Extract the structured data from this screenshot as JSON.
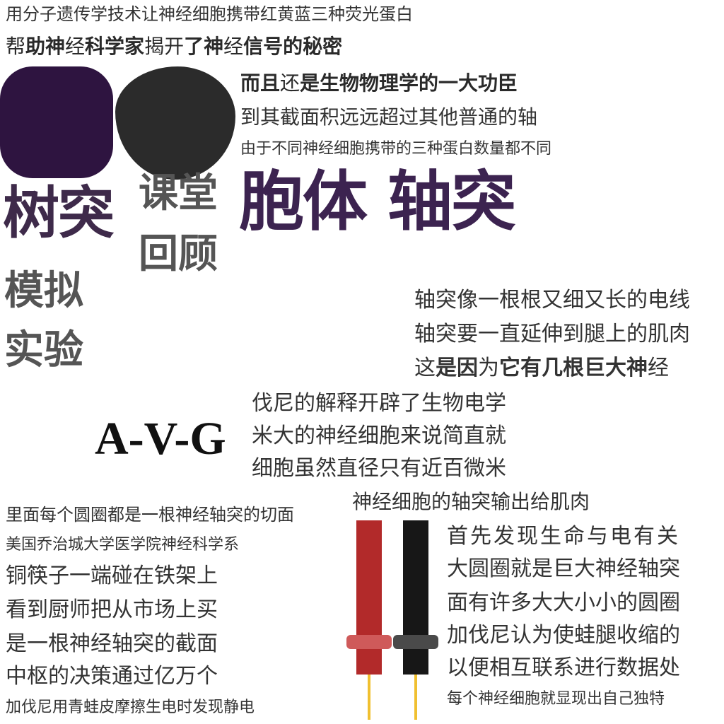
{
  "header": {
    "line1": "用分子遗传学技术让神经细胞携带红黄蓝三种荧光蛋白",
    "line2": {
      "p1": "帮",
      "p2": "助神",
      "p3": "经",
      "p4": "科学家",
      "p5": "揭开",
      "p6": "了神",
      "p7": "经",
      "p8": "信号的秘密"
    }
  },
  "top_right": {
    "line3": {
      "p1": "而且",
      "p2": "还",
      "p3": "是生物物理学的一大功臣"
    },
    "line4": "到其截面积远远超过其他普通的轴",
    "line5": "由于不同神经细胞携带的三种蛋白数量都不同"
  },
  "big_words": {
    "shutu": "树突",
    "ketang": "课堂",
    "huigu": "回顾",
    "paoti": "胞体 轴突",
    "moni": "模拟",
    "shiyan": "实验"
  },
  "axon_block": {
    "line1": "轴突像一根根又细又长的电线",
    "line2": "轴突要一直延伸到腿上的肌肉",
    "line3": {
      "p1": "这",
      "p2": "是因",
      "p3": "为",
      "p4": "它有几根巨大神",
      "p5": "经"
    }
  },
  "avg": "A-V-G",
  "middle_block": {
    "line1": "伐尼的解释开辟了生物电学",
    "line2": "米大的神经细胞来说简直就",
    "line3": "细胞虽然直径只有近百微米",
    "line4": "神经细胞的轴突输出给肌肉"
  },
  "bottom_left": {
    "line1": "里面每个圆圈都是一根神经轴突的切面",
    "line2": "美国乔治城大学医学院神经科学系",
    "line3": "铜筷子一端碰在铁架上",
    "line4": "看到厨师把从市场上买",
    "line5": "是一根神经轴突的截面",
    "line6": "中枢的决策通过亿万个",
    "line7": "加伐尼用青蛙皮摩擦生电时发现静电"
  },
  "bottom_right": {
    "line1": "首先发现生命与电有关",
    "line2": "大圆圈就是巨大神经轴突",
    "line3": "面有许多大大小小的圆圈",
    "line4": "加伐尼认为使蛙腿收缩的",
    "line5": "以便相互联系进行数据处",
    "line6": "每个神经细胞就显现出自己独特"
  },
  "colors": {
    "purple_square": "#2e1440",
    "dark_blob": "#2b2b2b",
    "big_purple_text": "#3c2350",
    "electrode_red": "#b22a2a",
    "electrode_black": "#171717",
    "electrode_wire": "#f0c030"
  },
  "icons": {
    "electrode_red": "electrode-red-icon",
    "electrode_black": "electrode-black-icon"
  }
}
